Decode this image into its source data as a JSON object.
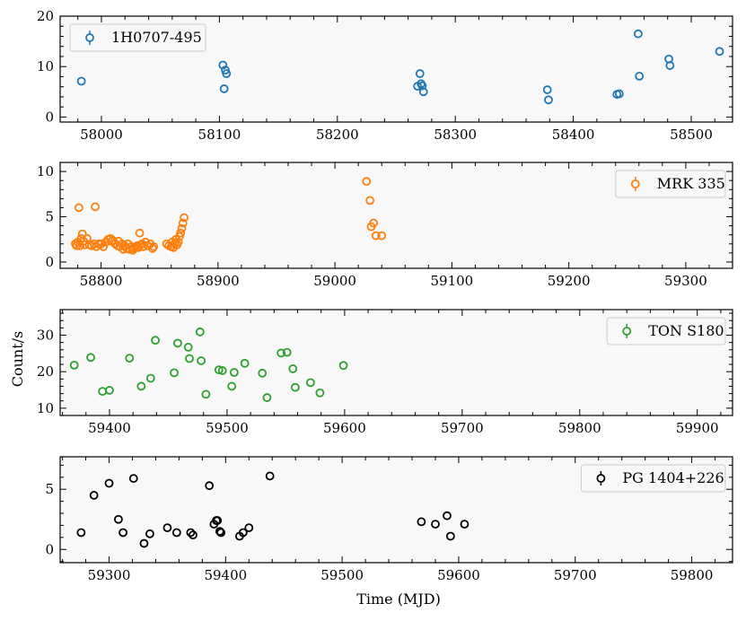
{
  "figure": {
    "ylabel": "Count/s",
    "xlabel": "Time (MJD)"
  },
  "chart_data": [
    {
      "type": "scatter",
      "legend": "1H0707-495",
      "color": "#1f77b4",
      "legend_position": "top-left",
      "xlim": [
        57965,
        58535
      ],
      "ylim": [
        -1,
        20
      ],
      "xticks": [
        58000,
        58100,
        58200,
        58300,
        58400,
        58500
      ],
      "yticks": [
        0,
        10,
        20
      ],
      "x": [
        57983,
        58103,
        58104,
        58105,
        58106,
        58268,
        58270,
        58271,
        58272,
        58273,
        58378,
        58379,
        58437,
        58439,
        58455,
        58456,
        58481,
        58482,
        58524
      ],
      "y": [
        7.1,
        10.3,
        5.6,
        9.3,
        8.6,
        6.1,
        8.6,
        6.6,
        6.2,
        5.0,
        5.4,
        3.4,
        4.5,
        4.6,
        16.5,
        8.1,
        11.5,
        10.2,
        13.0
      ]
    },
    {
      "type": "scatter",
      "legend": "MRK 335",
      "color": "#ff7f0e",
      "legend_position": "top-right",
      "xlim": [
        58765,
        59340
      ],
      "ylim": [
        -0.7,
        11
      ],
      "xticks": [
        58800,
        58900,
        59000,
        59100,
        59200,
        59300
      ],
      "yticks": [
        0,
        5,
        10
      ],
      "x": [
        58778,
        58779,
        58780,
        58781,
        58782,
        58783,
        58784,
        58785,
        58786,
        58788,
        58790,
        58792,
        58794,
        58795,
        58796,
        58798,
        58800,
        58802,
        58804,
        58806,
        58808,
        58809,
        58810,
        58812,
        58814,
        58815,
        58816,
        58818,
        58819,
        58820,
        58822,
        58823,
        58824,
        58826,
        58827,
        58828,
        58830,
        58831,
        58832,
        58833,
        58834,
        58835,
        58836,
        58838,
        58840,
        58842,
        58844,
        58845,
        58856,
        58858,
        58860,
        58861,
        58862,
        58863,
        58864,
        58865,
        58866,
        58867,
        58868,
        58869,
        58870,
        58871,
        59027,
        59030,
        59031,
        59033,
        59035,
        59040
      ],
      "y": [
        2.0,
        1.8,
        2.2,
        6.0,
        1.8,
        2.6,
        3.1,
        2.3,
        1.9,
        2.6,
        1.9,
        1.8,
        2.0,
        6.1,
        1.7,
        2.0,
        2.0,
        1.7,
        2.2,
        2.5,
        2.6,
        2.3,
        2.4,
        2.0,
        1.8,
        2.3,
        1.7,
        2.0,
        1.4,
        1.8,
        1.5,
        2.0,
        1.4,
        1.7,
        1.3,
        1.5,
        1.6,
        1.8,
        1.6,
        3.2,
        1.9,
        2.0,
        1.7,
        2.2,
        1.8,
        2.0,
        1.5,
        1.7,
        2.0,
        1.8,
        1.7,
        2.2,
        1.6,
        2.0,
        2.5,
        1.9,
        2.2,
        2.8,
        3.2,
        3.7,
        4.3,
        4.9,
        8.9,
        6.8,
        3.9,
        4.3,
        2.9,
        2.9
      ]
    },
    {
      "type": "scatter",
      "legend": "TON S180",
      "color": "#2ca02c",
      "legend_position": "top-right",
      "xlim": [
        59358,
        59930
      ],
      "ylim": [
        8,
        37
      ],
      "xticks": [
        59400,
        59500,
        59600,
        59700,
        59800,
        59900
      ],
      "yticks": [
        10,
        20,
        30
      ],
      "x": [
        59370,
        59384,
        59394,
        59400,
        59417,
        59427,
        59435,
        59439,
        59455,
        59458,
        59467,
        59468,
        59477,
        59478,
        59482,
        59493,
        59496,
        59504,
        59506,
        59515,
        59530,
        59534,
        59546,
        59551,
        59556,
        59558,
        59571,
        59579,
        59599
      ],
      "y": [
        21.8,
        23.9,
        14.6,
        14.9,
        23.7,
        16.0,
        18.2,
        28.6,
        19.7,
        27.8,
        26.7,
        23.6,
        30.9,
        23.0,
        13.8,
        20.5,
        20.3,
        16.0,
        19.8,
        22.3,
        19.6,
        12.9,
        25.1,
        25.3,
        20.8,
        15.7,
        17.0,
        14.2,
        21.7
      ]
    },
    {
      "type": "scatter",
      "legend": "PG 1404+226",
      "color": "#000000",
      "legend_position": "top-right",
      "xlim": [
        59258,
        59835
      ],
      "ylim": [
        -1.1,
        7.7
      ],
      "xticks": [
        59300,
        59400,
        59500,
        59600,
        59700,
        59800
      ],
      "yticks": [
        0,
        5
      ],
      "x": [
        59276,
        59287,
        59300,
        59308,
        59312,
        59321,
        59330,
        59335,
        59350,
        59358,
        59370,
        59372,
        59386,
        59390,
        59392,
        59393,
        59395,
        59396,
        59412,
        59415,
        59420,
        59438,
        59568,
        59580,
        59590,
        59593,
        59605
      ],
      "y": [
        1.4,
        4.5,
        5.5,
        2.5,
        1.4,
        5.9,
        0.5,
        1.3,
        1.8,
        1.4,
        1.4,
        1.2,
        5.3,
        2.1,
        2.4,
        2.4,
        1.5,
        1.4,
        1.1,
        1.4,
        1.8,
        6.1,
        2.3,
        2.1,
        2.8,
        1.1,
        2.1
      ]
    }
  ]
}
